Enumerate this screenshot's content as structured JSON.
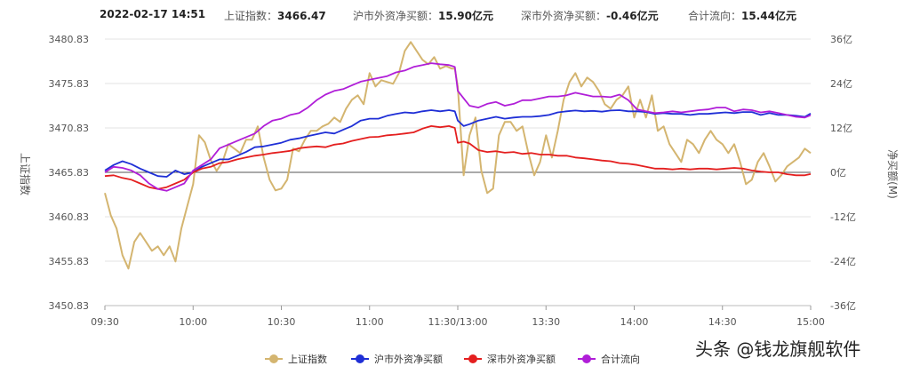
{
  "header": {
    "datetime": "2022-02-17  14:51",
    "sh_index_label": "上证指数：",
    "sh_index_value": "3466.47",
    "hu_label": "沪市外资净买额：",
    "hu_value": "15.90亿元",
    "shen_label": "深市外资净买额：",
    "shen_value": "-0.46亿元",
    "total_label": "合计流向：",
    "total_value": "15.44亿元"
  },
  "watermark": "头条 @钱龙旗舰软件",
  "chart_data": {
    "type": "line",
    "title": "",
    "ylabel_left": "上证指数",
    "ylabel_right": "净买额(M)",
    "yticks_left": [
      "3480.83",
      "3475.83",
      "3470.83",
      "3465.83",
      "3460.83",
      "3455.83",
      "3450.83"
    ],
    "yticks_right": [
      "36亿",
      "24亿",
      "12亿",
      "0亿",
      "-12亿",
      "-24亿",
      "-36亿"
    ],
    "ylim_left": [
      3450.83,
      3480.83
    ],
    "ylim_right": [
      -36,
      36
    ],
    "xticks": [
      "09:30",
      "10:00",
      "10:30",
      "11:00",
      "11:30/13:00",
      "13:30",
      "14:00",
      "14:30",
      "15:00"
    ],
    "xlim": [
      0,
      240
    ],
    "zero_line": true,
    "legend_position": "bottom",
    "series": [
      {
        "name": "上证指数",
        "axis": "left",
        "color": "#d4b570",
        "x": [
          0,
          2,
          4,
          6,
          8,
          10,
          12,
          14,
          16,
          18,
          20,
          22,
          24,
          26,
          28,
          30,
          32,
          34,
          36,
          38,
          40,
          42,
          44,
          46,
          48,
          50,
          52,
          54,
          56,
          58,
          60,
          62,
          64,
          66,
          68,
          70,
          72,
          74,
          76,
          78,
          80,
          82,
          84,
          86,
          88,
          90,
          92,
          94,
          96,
          98,
          100,
          102,
          104,
          106,
          108,
          110,
          112,
          114,
          116,
          118,
          119,
          120,
          122,
          124,
          126,
          128,
          130,
          132,
          134,
          136,
          138,
          140,
          142,
          144,
          146,
          148,
          150,
          152,
          154,
          156,
          158,
          160,
          162,
          164,
          166,
          168,
          170,
          172,
          174,
          176,
          178,
          180,
          182,
          184,
          186,
          188,
          190,
          192,
          194,
          196,
          198,
          200,
          202,
          204,
          206,
          208,
          210,
          212,
          214,
          216,
          218,
          220,
          222,
          224,
          226,
          228,
          230,
          232,
          234,
          236,
          238,
          240
        ],
        "y": [
          3463.5,
          3461.0,
          3459.5,
          3456.5,
          3455.0,
          3458.0,
          3459.0,
          3458.0,
          3457.0,
          3457.5,
          3456.5,
          3457.5,
          3455.8,
          3459.5,
          3462.0,
          3464.5,
          3470.0,
          3469.2,
          3467.2,
          3466.0,
          3467.0,
          3469.0,
          3468.5,
          3468.0,
          3469.5,
          3469.5,
          3471.0,
          3467.5,
          3465.0,
          3463.8,
          3464.0,
          3465.0,
          3468.5,
          3468.2,
          3469.5,
          3470.5,
          3470.5,
          3471.0,
          3471.3,
          3472.0,
          3471.5,
          3473.0,
          3474.0,
          3474.5,
          3473.5,
          3477.0,
          3475.5,
          3476.2,
          3476.0,
          3475.8,
          3477.0,
          3479.5,
          3480.5,
          3479.5,
          3478.5,
          3478.0,
          3478.8,
          3477.5,
          3477.8,
          3477.5,
          3477.5,
          3475.5,
          3465.5,
          3470.0,
          3472.0,
          3466.0,
          3463.5,
          3464.0,
          3470.0,
          3471.5,
          3471.5,
          3470.5,
          3471.0,
          3468.0,
          3465.5,
          3467.0,
          3470.0,
          3467.5,
          3470.5,
          3474.0,
          3476.0,
          3477.0,
          3475.5,
          3476.5,
          3476.0,
          3475.0,
          3473.5,
          3473.0,
          3474.0,
          3474.5,
          3475.5,
          3472.0,
          3474.0,
          3472.0,
          3474.5,
          3470.5,
          3471.0,
          3469.0,
          3468.0,
          3467.0,
          3469.5,
          3469.0,
          3468.0,
          3469.5,
          3470.5,
          3469.5,
          3469.0,
          3468.0,
          3469.0,
          3467.0,
          3464.5,
          3465.0,
          3467.0,
          3468.0,
          3466.5,
          3464.8,
          3465.5,
          3466.5,
          3467.0,
          3467.5,
          3468.5,
          3468.0
        ]
      },
      {
        "name": "沪市外资净买额",
        "axis": "right",
        "color": "#1f2fd6",
        "x": [
          0,
          3,
          6,
          9,
          12,
          15,
          18,
          21,
          24,
          27,
          30,
          33,
          36,
          39,
          42,
          45,
          48,
          51,
          54,
          57,
          60,
          63,
          66,
          69,
          72,
          75,
          78,
          81,
          84,
          87,
          90,
          93,
          96,
          99,
          102,
          105,
          108,
          111,
          114,
          117,
          119,
          120,
          122,
          124,
          127,
          130,
          133,
          136,
          139,
          142,
          145,
          148,
          151,
          154,
          157,
          160,
          163,
          166,
          169,
          172,
          175,
          178,
          181,
          184,
          187,
          190,
          193,
          196,
          199,
          202,
          205,
          208,
          211,
          214,
          217,
          220,
          223,
          226,
          229,
          232,
          235,
          238,
          240
        ],
        "y": [
          0.5,
          2.0,
          3.0,
          2.2,
          1.0,
          0.0,
          -1.0,
          -1.2,
          0.5,
          -0.5,
          0.0,
          1.5,
          2.5,
          3.5,
          3.5,
          4.5,
          5.5,
          6.8,
          7.0,
          7.5,
          8.0,
          8.8,
          9.2,
          9.8,
          10.3,
          10.8,
          10.5,
          11.5,
          12.5,
          14.0,
          14.5,
          14.5,
          15.3,
          15.8,
          16.2,
          16.0,
          16.5,
          16.8,
          16.5,
          16.8,
          16.5,
          14.0,
          12.5,
          13.0,
          14.0,
          14.5,
          15.0,
          14.5,
          14.8,
          15.0,
          15.0,
          15.2,
          15.5,
          16.2,
          16.5,
          16.7,
          16.5,
          16.6,
          16.4,
          16.7,
          16.8,
          16.5,
          16.5,
          16.3,
          15.8,
          16.0,
          15.8,
          15.8,
          15.5,
          15.8,
          15.8,
          16.0,
          16.2,
          16.0,
          16.3,
          16.3,
          15.5,
          16.0,
          15.5,
          15.5,
          15.3,
          15.0,
          15.9
        ]
      },
      {
        "name": "深市外资净买额",
        "axis": "right",
        "color": "#e41f1f",
        "x": [
          0,
          3,
          6,
          9,
          12,
          15,
          18,
          21,
          24,
          27,
          30,
          33,
          36,
          39,
          42,
          45,
          48,
          51,
          54,
          57,
          60,
          63,
          66,
          69,
          72,
          75,
          78,
          81,
          84,
          87,
          90,
          93,
          96,
          99,
          102,
          105,
          108,
          111,
          114,
          117,
          119,
          120,
          122,
          124,
          127,
          130,
          133,
          136,
          139,
          142,
          145,
          148,
          151,
          154,
          157,
          160,
          163,
          166,
          169,
          172,
          175,
          178,
          181,
          184,
          187,
          190,
          193,
          196,
          199,
          202,
          205,
          208,
          211,
          214,
          217,
          220,
          223,
          226,
          229,
          232,
          235,
          238,
          240
        ],
        "y": [
          -1.0,
          -0.8,
          -1.5,
          -2.0,
          -3.0,
          -4.0,
          -4.5,
          -4.0,
          -3.0,
          -2.0,
          0.0,
          1.0,
          1.5,
          2.5,
          2.8,
          3.5,
          4.0,
          4.5,
          4.8,
          5.2,
          5.5,
          5.8,
          6.5,
          6.8,
          7.0,
          6.8,
          7.5,
          7.8,
          8.5,
          9.0,
          9.5,
          9.6,
          10.0,
          10.2,
          10.5,
          10.8,
          11.8,
          12.5,
          12.2,
          12.5,
          12.0,
          8.0,
          8.3,
          7.8,
          6.0,
          5.5,
          5.7,
          5.3,
          5.5,
          5.0,
          5.2,
          4.8,
          4.8,
          4.5,
          4.5,
          4.0,
          3.8,
          3.5,
          3.2,
          3.0,
          2.5,
          2.3,
          2.0,
          1.5,
          1.0,
          1.0,
          0.8,
          1.0,
          0.8,
          1.0,
          1.0,
          0.8,
          1.0,
          1.2,
          1.0,
          0.5,
          0.2,
          0.0,
          0.0,
          -0.5,
          -0.8,
          -0.8,
          -0.46
        ]
      },
      {
        "name": "合计流向",
        "axis": "right",
        "color": "#b01ed8",
        "x": [
          0,
          3,
          6,
          9,
          12,
          15,
          18,
          21,
          24,
          27,
          30,
          33,
          36,
          39,
          42,
          45,
          48,
          51,
          54,
          57,
          60,
          63,
          66,
          69,
          72,
          75,
          78,
          81,
          84,
          87,
          90,
          93,
          96,
          99,
          102,
          105,
          108,
          111,
          114,
          117,
          119,
          120,
          122,
          124,
          127,
          130,
          133,
          136,
          139,
          142,
          145,
          148,
          151,
          154,
          157,
          160,
          163,
          166,
          169,
          172,
          175,
          178,
          181,
          184,
          187,
          190,
          193,
          196,
          199,
          202,
          205,
          208,
          211,
          214,
          217,
          220,
          223,
          226,
          229,
          232,
          235,
          238,
          240
        ],
        "y": [
          0.0,
          1.5,
          1.2,
          0.5,
          -0.8,
          -3.0,
          -4.5,
          -5.0,
          -4.0,
          -3.0,
          0.5,
          2.0,
          3.5,
          6.5,
          7.5,
          8.5,
          9.5,
          10.5,
          12.5,
          14.0,
          14.5,
          15.5,
          16.0,
          17.5,
          19.5,
          21.0,
          22.0,
          22.5,
          23.5,
          24.5,
          25.0,
          25.5,
          26.0,
          27.0,
          27.5,
          28.5,
          29.0,
          29.5,
          29.2,
          29.0,
          28.5,
          22.0,
          20.0,
          18.0,
          17.5,
          18.5,
          19.0,
          18.0,
          18.5,
          19.5,
          19.5,
          20.0,
          20.5,
          20.5,
          20.8,
          21.5,
          21.0,
          20.5,
          20.5,
          20.3,
          21.0,
          19.5,
          17.0,
          16.5,
          16.0,
          16.2,
          16.5,
          16.2,
          16.5,
          16.8,
          17.0,
          17.5,
          17.5,
          16.5,
          17.0,
          16.8,
          16.2,
          16.5,
          16.0,
          15.5,
          15.0,
          14.8,
          15.44
        ]
      }
    ]
  }
}
